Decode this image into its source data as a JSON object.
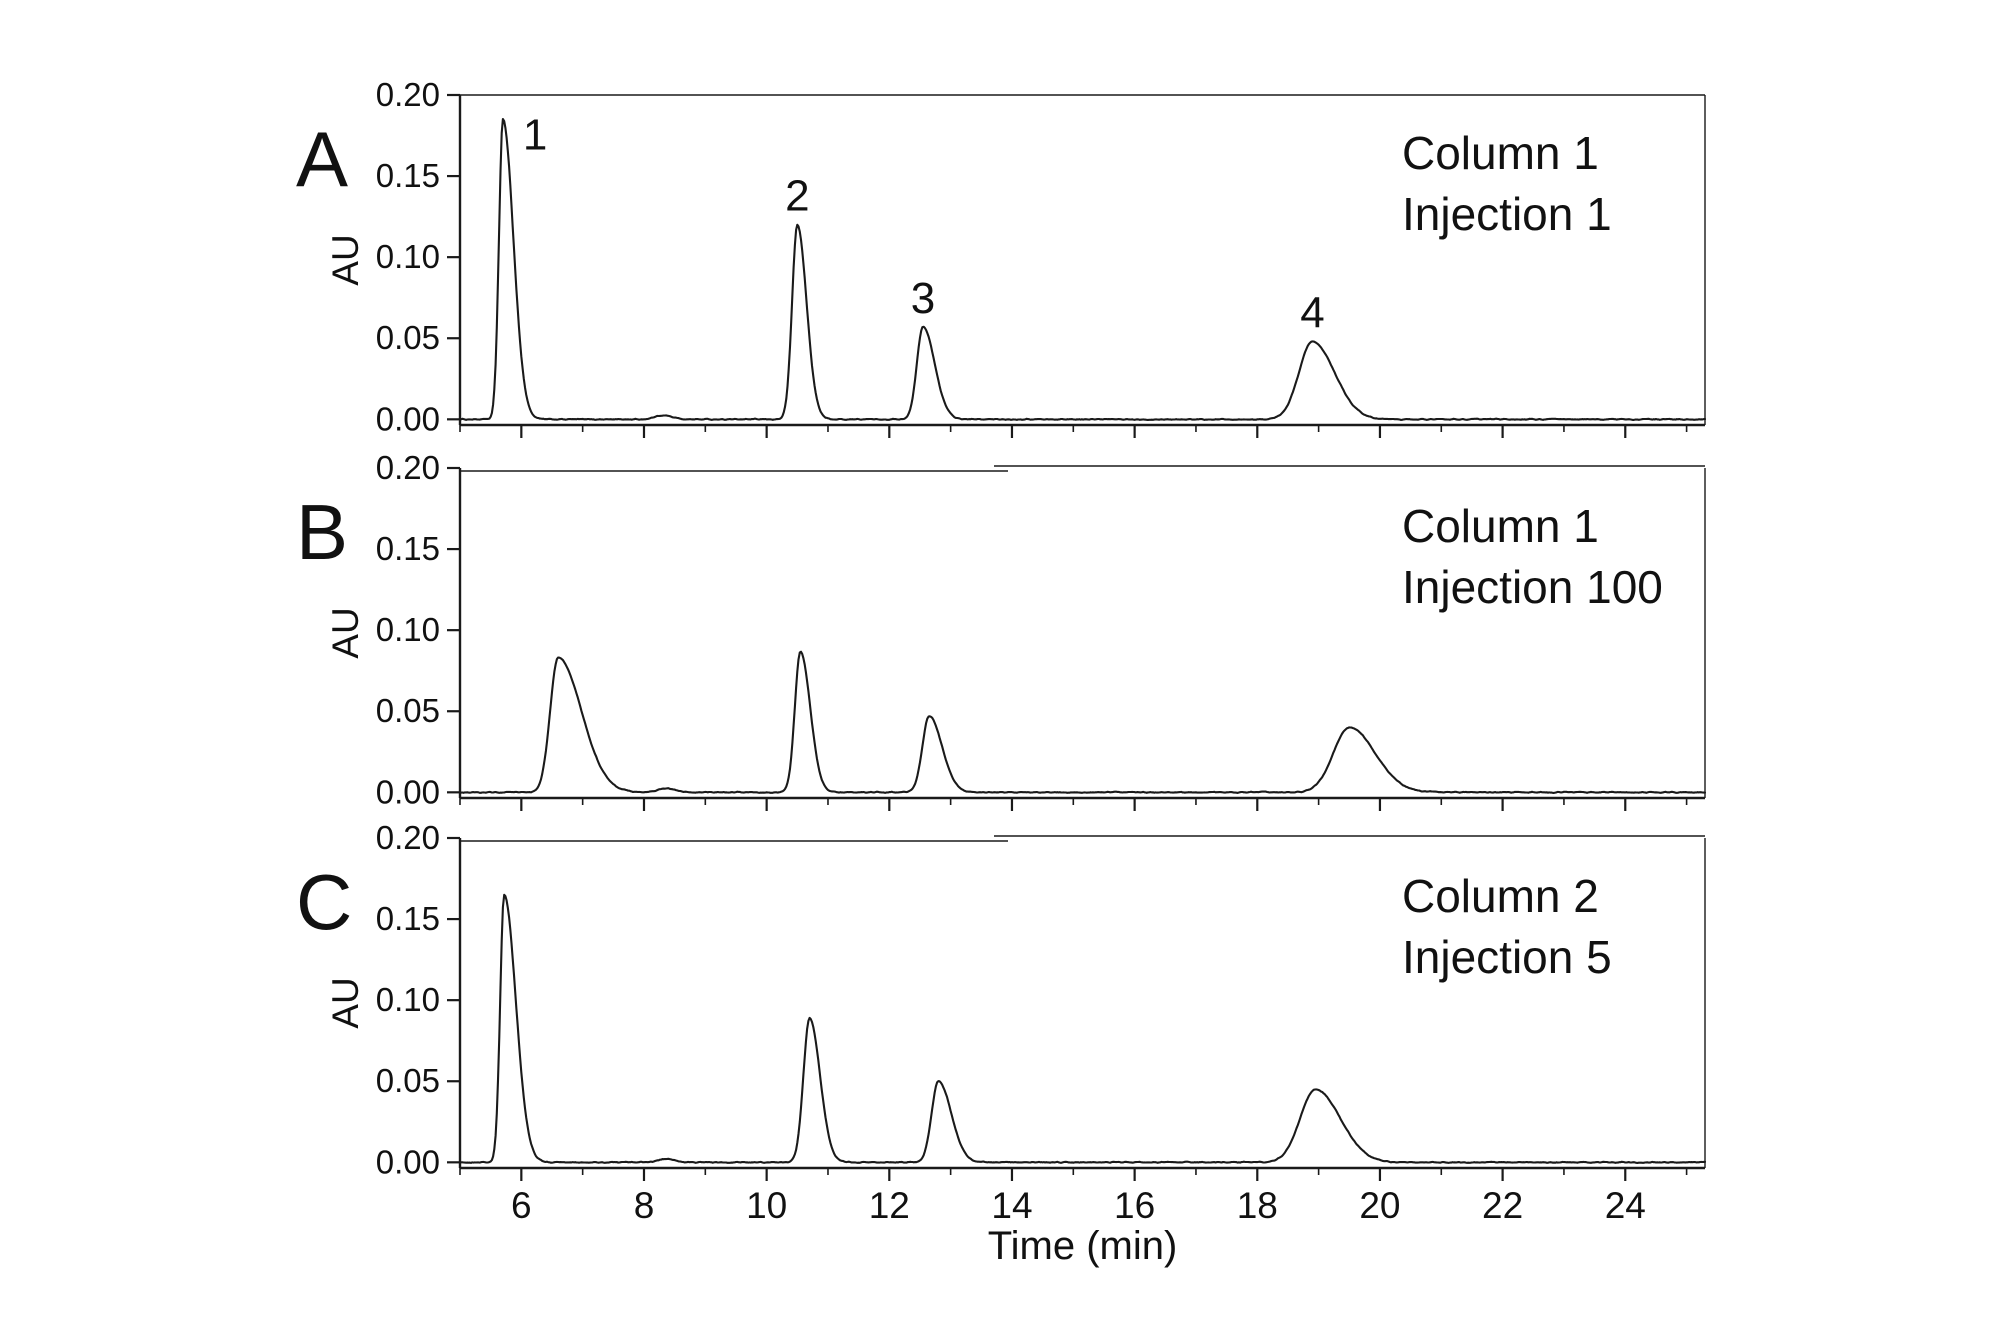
{
  "figure": {
    "xlabel": "Time (min)",
    "ylabel": "AU",
    "x_axis": {
      "range_min": 5.0,
      "range_max": 25.3,
      "major_ticks": [
        6,
        8,
        10,
        12,
        14,
        16,
        18,
        20,
        22,
        24
      ],
      "minor_tick_step": 1
    },
    "y_axis": {
      "range_min": 0.0,
      "range_max": 0.2,
      "ticks": [
        {
          "v": 0.0,
          "label": "0.00"
        },
        {
          "v": 0.05,
          "label": "0.05"
        },
        {
          "v": 0.1,
          "label": "0.10"
        },
        {
          "v": 0.15,
          "label": "0.15"
        },
        {
          "v": 0.2,
          "label": "0.20"
        }
      ]
    },
    "line_color": "#1a1a1a",
    "grid": "off",
    "legend": "none"
  },
  "chart_data": [
    {
      "type": "line",
      "panel_label": "A",
      "annotation": [
        "Column 1",
        "Injection 1"
      ],
      "x_unit": "min",
      "y_unit": "AU",
      "peaks": [
        {
          "label": "1",
          "rt_min": 5.7,
          "height_au": 0.185,
          "sigma_l": 0.065,
          "sigma_r": 0.17,
          "label_pos": "right"
        },
        {
          "label": "2",
          "rt_min": 10.5,
          "height_au": 0.12,
          "sigma_l": 0.085,
          "sigma_r": 0.15,
          "label_pos": "above"
        },
        {
          "label": "3",
          "rt_min": 12.55,
          "height_au": 0.057,
          "sigma_l": 0.1,
          "sigma_r": 0.19,
          "label_pos": "above"
        },
        {
          "label": "4",
          "rt_min": 18.9,
          "height_au": 0.048,
          "sigma_l": 0.22,
          "sigma_r": 0.36,
          "label_pos": "above"
        },
        {
          "label": null,
          "rt_min": 8.3,
          "height_au": 0.0025,
          "sigma_l": 0.12,
          "sigma_r": 0.15
        }
      ]
    },
    {
      "type": "line",
      "panel_label": "B",
      "annotation": [
        "Column 1",
        "Injection 100"
      ],
      "x_unit": "min",
      "y_unit": "AU",
      "peaks": [
        {
          "label": null,
          "rt_min": 6.6,
          "height_au": 0.083,
          "sigma_l": 0.13,
          "sigma_r": 0.38
        },
        {
          "label": null,
          "rt_min": 10.55,
          "height_au": 0.087,
          "sigma_l": 0.09,
          "sigma_r": 0.16
        },
        {
          "label": null,
          "rt_min": 12.65,
          "height_au": 0.047,
          "sigma_l": 0.11,
          "sigma_r": 0.21
        },
        {
          "label": null,
          "rt_min": 19.5,
          "height_au": 0.04,
          "sigma_l": 0.26,
          "sigma_r": 0.42
        },
        {
          "label": null,
          "rt_min": 8.35,
          "height_au": 0.0025,
          "sigma_l": 0.12,
          "sigma_r": 0.15
        }
      ]
    },
    {
      "type": "line",
      "panel_label": "C",
      "annotation": [
        "Column 2",
        "Injection 5"
      ],
      "x_unit": "min",
      "y_unit": "AU",
      "peaks": [
        {
          "label": null,
          "rt_min": 5.72,
          "height_au": 0.165,
          "sigma_l": 0.065,
          "sigma_r": 0.19
        },
        {
          "label": null,
          "rt_min": 10.7,
          "height_au": 0.089,
          "sigma_l": 0.1,
          "sigma_r": 0.17
        },
        {
          "label": null,
          "rt_min": 12.8,
          "height_au": 0.05,
          "sigma_l": 0.11,
          "sigma_r": 0.21
        },
        {
          "label": null,
          "rt_min": 18.95,
          "height_au": 0.045,
          "sigma_l": 0.25,
          "sigma_r": 0.4
        },
        {
          "label": null,
          "rt_min": 8.35,
          "height_au": 0.002,
          "sigma_l": 0.12,
          "sigma_r": 0.15
        }
      ]
    }
  ]
}
